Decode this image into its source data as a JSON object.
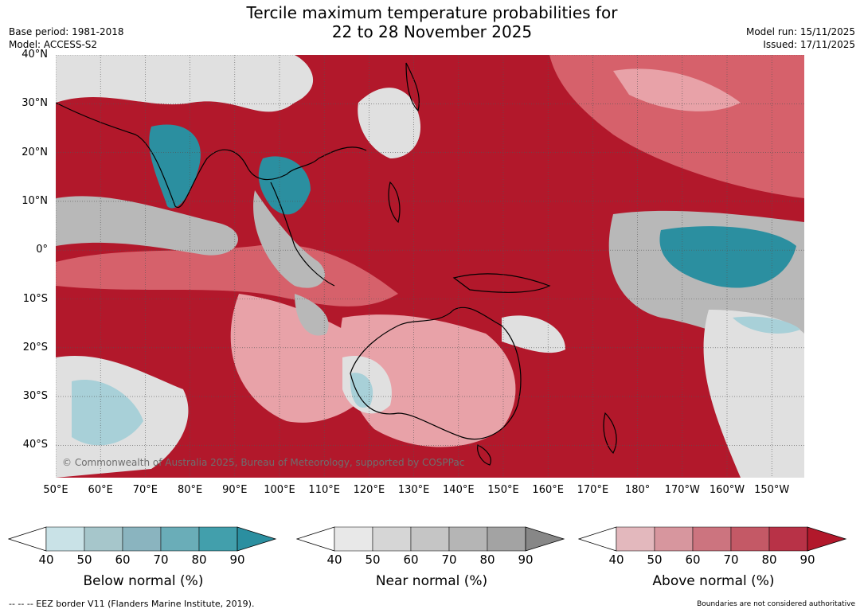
{
  "title": {
    "line1": "Tercile maximum temperature probabilities for",
    "line2": "22 to 28 November 2025"
  },
  "meta_left": {
    "base_period": "Base period: 1981-2018",
    "model": "Model: ACCESS-S2"
  },
  "meta_right": {
    "model_run": "Model run: 15/11/2025",
    "issued": "Issued: 17/11/2025"
  },
  "map": {
    "lat_labels": [
      "40°N",
      "30°N",
      "20°N",
      "10°N",
      "0°",
      "10°S",
      "20°S",
      "30°S",
      "40°S"
    ],
    "lon_labels": [
      "50°E",
      "60°E",
      "70°E",
      "80°E",
      "90°E",
      "100°E",
      "110°E",
      "120°E",
      "130°E",
      "140°E",
      "150°E",
      "160°E",
      "170°E",
      "180°",
      "170°W",
      "160°W",
      "150°W"
    ],
    "copyright": "© Commonwealth of Australia 2025, Bureau of Meteorology, supported by COSPPac",
    "colors": {
      "above_strong": "#b2182b",
      "above_mid": "#d6616b",
      "above_light": "#e8a2a8",
      "near_light": "#e0e0e0",
      "near_mid": "#b8b8b8",
      "below_strong": "#2b8fa0",
      "below_light": "#a8d0d8"
    }
  },
  "legends": [
    {
      "title": "Below normal (%)",
      "ticks": [
        "40",
        "50",
        "60",
        "70",
        "80",
        "90"
      ],
      "colors": [
        "#c9e2e7",
        "#a6c6cb",
        "#8ab4bf",
        "#6aadb8",
        "#429fac",
        "#2b8fa0"
      ]
    },
    {
      "title": "Near normal (%)",
      "ticks": [
        "40",
        "50",
        "60",
        "70",
        "80",
        "90"
      ],
      "colors": [
        "#e8e8e8",
        "#d6d6d6",
        "#c5c5c5",
        "#b5b5b5",
        "#a3a3a3",
        "#878787"
      ]
    },
    {
      "title": "Above normal (%)",
      "ticks": [
        "40",
        "50",
        "60",
        "70",
        "80",
        "90"
      ],
      "colors": [
        "#e3b8bd",
        "#d7969e",
        "#cc747f",
        "#c45966",
        "#b83247",
        "#b2182b"
      ]
    }
  ],
  "footer": {
    "left": "--  --  -- EEZ border V11 (Flanders Marine Institute, 2019).",
    "right": "Boundaries are not considered authoritative"
  }
}
